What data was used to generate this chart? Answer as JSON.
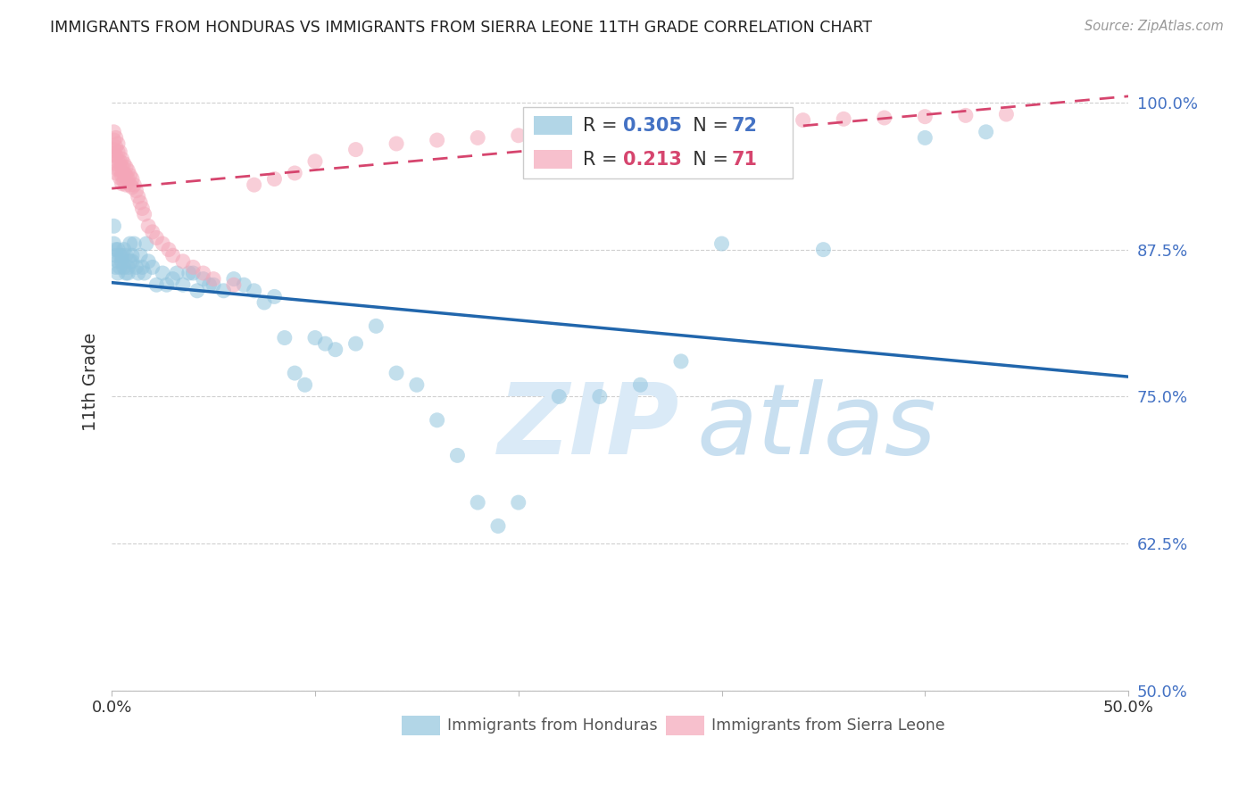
{
  "title": "IMMIGRANTS FROM HONDURAS VS IMMIGRANTS FROM SIERRA LEONE 11TH GRADE CORRELATION CHART",
  "source": "Source: ZipAtlas.com",
  "ylabel": "11th Grade",
  "xlim": [
    0.0,
    0.5
  ],
  "ylim": [
    0.5,
    1.025
  ],
  "yticks": [
    0.5,
    0.625,
    0.75,
    0.875,
    1.0
  ],
  "ytick_labels": [
    "50.0%",
    "62.5%",
    "75.0%",
    "87.5%",
    "100.0%"
  ],
  "color_honduras": "#92c5de",
  "color_honduras_line": "#2166ac",
  "color_sierra": "#f4a6b8",
  "color_sierra_line": "#d6456e",
  "watermark_zip_color": "#daeaf7",
  "watermark_atlas_color": "#c8dff0",
  "title_color": "#222222",
  "axis_label_color": "#333333",
  "tick_color_right": "#4472c4",
  "grid_color": "#d0d0d0",
  "honduras_x": [
    0.001,
    0.001,
    0.002,
    0.002,
    0.002,
    0.003,
    0.003,
    0.003,
    0.004,
    0.004,
    0.005,
    0.005,
    0.006,
    0.006,
    0.007,
    0.007,
    0.008,
    0.008,
    0.009,
    0.009,
    0.01,
    0.01,
    0.011,
    0.012,
    0.013,
    0.014,
    0.015,
    0.016,
    0.017,
    0.018,
    0.02,
    0.022,
    0.025,
    0.027,
    0.03,
    0.032,
    0.035,
    0.038,
    0.04,
    0.042,
    0.045,
    0.048,
    0.05,
    0.055,
    0.06,
    0.065,
    0.07,
    0.075,
    0.08,
    0.085,
    0.09,
    0.095,
    0.1,
    0.105,
    0.11,
    0.12,
    0.13,
    0.14,
    0.15,
    0.16,
    0.17,
    0.18,
    0.19,
    0.2,
    0.22,
    0.24,
    0.26,
    0.28,
    0.3,
    0.35,
    0.4,
    0.43
  ],
  "honduras_y": [
    0.895,
    0.88,
    0.875,
    0.87,
    0.86,
    0.875,
    0.865,
    0.855,
    0.87,
    0.86,
    0.87,
    0.865,
    0.875,
    0.86,
    0.855,
    0.87,
    0.86,
    0.855,
    0.88,
    0.865,
    0.87,
    0.865,
    0.88,
    0.86,
    0.855,
    0.87,
    0.86,
    0.855,
    0.88,
    0.865,
    0.86,
    0.845,
    0.855,
    0.845,
    0.85,
    0.855,
    0.845,
    0.855,
    0.855,
    0.84,
    0.85,
    0.845,
    0.845,
    0.84,
    0.85,
    0.845,
    0.84,
    0.83,
    0.835,
    0.8,
    0.77,
    0.76,
    0.8,
    0.795,
    0.79,
    0.795,
    0.81,
    0.77,
    0.76,
    0.73,
    0.7,
    0.66,
    0.64,
    0.66,
    0.75,
    0.75,
    0.76,
    0.78,
    0.88,
    0.875,
    0.97,
    0.975
  ],
  "sierra_x": [
    0.001,
    0.001,
    0.001,
    0.001,
    0.002,
    0.002,
    0.002,
    0.002,
    0.002,
    0.003,
    0.003,
    0.003,
    0.003,
    0.004,
    0.004,
    0.004,
    0.004,
    0.005,
    0.005,
    0.005,
    0.005,
    0.006,
    0.006,
    0.006,
    0.007,
    0.007,
    0.007,
    0.008,
    0.008,
    0.009,
    0.009,
    0.01,
    0.01,
    0.011,
    0.012,
    0.013,
    0.014,
    0.015,
    0.016,
    0.018,
    0.02,
    0.022,
    0.025,
    0.028,
    0.03,
    0.035,
    0.04,
    0.045,
    0.05,
    0.06,
    0.07,
    0.08,
    0.09,
    0.1,
    0.12,
    0.14,
    0.16,
    0.18,
    0.2,
    0.22,
    0.24,
    0.26,
    0.28,
    0.3,
    0.32,
    0.34,
    0.36,
    0.38,
    0.4,
    0.42,
    0.44
  ],
  "sierra_y": [
    0.975,
    0.968,
    0.96,
    0.955,
    0.97,
    0.962,
    0.955,
    0.948,
    0.94,
    0.965,
    0.958,
    0.95,
    0.943,
    0.958,
    0.95,
    0.943,
    0.936,
    0.952,
    0.945,
    0.938,
    0.931,
    0.948,
    0.94,
    0.933,
    0.945,
    0.938,
    0.93,
    0.942,
    0.935,
    0.938,
    0.93,
    0.935,
    0.928,
    0.93,
    0.925,
    0.92,
    0.915,
    0.91,
    0.905,
    0.895,
    0.89,
    0.885,
    0.88,
    0.875,
    0.87,
    0.865,
    0.86,
    0.855,
    0.85,
    0.845,
    0.93,
    0.935,
    0.94,
    0.95,
    0.96,
    0.965,
    0.968,
    0.97,
    0.972,
    0.975,
    0.975,
    0.978,
    0.98,
    0.982,
    0.983,
    0.985,
    0.986,
    0.987,
    0.988,
    0.989,
    0.99
  ]
}
